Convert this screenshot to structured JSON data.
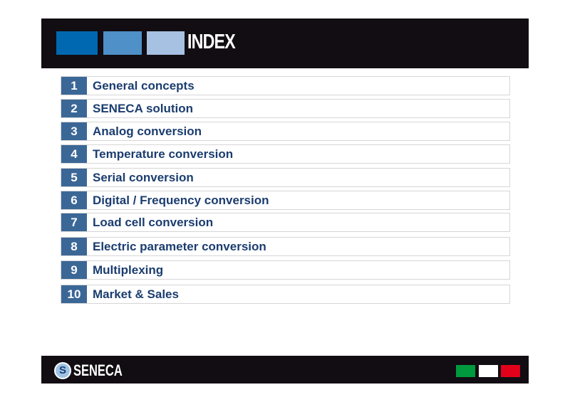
{
  "header": {
    "title": "INDEX",
    "squares": [
      "#0067b1",
      "#4f90c8",
      "#a6c1e2"
    ]
  },
  "items": [
    {
      "num": "1",
      "label": "General concepts"
    },
    {
      "num": "2",
      "label": "SENECA solution"
    },
    {
      "num": "3",
      "label": "Analog conversion"
    },
    {
      "num": "4",
      "label": "Temperature conversion"
    },
    {
      "num": "5",
      "label": "Serial conversion"
    },
    {
      "num": "6",
      "label": "Digital / Frequency conversion"
    },
    {
      "num": "7",
      "label": "Load cell conversion"
    },
    {
      "num": "8",
      "label": "Electric parameter conversion"
    },
    {
      "num": "9",
      "label": "Multiplexing"
    },
    {
      "num": "10",
      "label": "Market & Sales"
    }
  ],
  "footer": {
    "logo": "SENECA",
    "flag_colors": [
      "#009a3e",
      "#ffffff",
      "#e3001b"
    ]
  }
}
